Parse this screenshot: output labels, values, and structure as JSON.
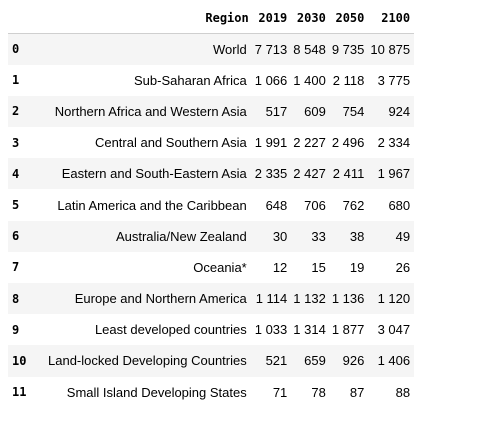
{
  "table": {
    "columns": [
      "",
      "Region",
      "2019",
      "2030",
      "2050",
      "2100"
    ],
    "rows": [
      {
        "index": "0",
        "region": "World",
        "v2019": "7 713",
        "v2030": "8 548",
        "v2050": "9 735",
        "v2100": "10 875"
      },
      {
        "index": "1",
        "region": "Sub-Saharan Africa",
        "v2019": "1 066",
        "v2030": "1 400",
        "v2050": "2 118",
        "v2100": "3 775"
      },
      {
        "index": "2",
        "region": "Northern Africa and Western Asia",
        "v2019": "517",
        "v2030": "609",
        "v2050": "754",
        "v2100": "924"
      },
      {
        "index": "3",
        "region": "Central and Southern Asia",
        "v2019": "1 991",
        "v2030": "2 227",
        "v2050": "2 496",
        "v2100": "2 334"
      },
      {
        "index": "4",
        "region": "Eastern and South-Eastern Asia",
        "v2019": "2 335",
        "v2030": "2 427",
        "v2050": "2 411",
        "v2100": "1 967"
      },
      {
        "index": "5",
        "region": "Latin America and the Caribbean",
        "v2019": "648",
        "v2030": "706",
        "v2050": "762",
        "v2100": "680"
      },
      {
        "index": "6",
        "region": "Australia/New Zealand",
        "v2019": "30",
        "v2030": "33",
        "v2050": "38",
        "v2100": "49"
      },
      {
        "index": "7",
        "region": "Oceania*",
        "v2019": "12",
        "v2030": "15",
        "v2050": "19",
        "v2100": "26"
      },
      {
        "index": "8",
        "region": "Europe and Northern America",
        "v2019": "1 114",
        "v2030": "1 132",
        "v2050": "1 136",
        "v2100": "1 120"
      },
      {
        "index": "9",
        "region": "Least developed countries",
        "v2019": "1 033",
        "v2030": "1 314",
        "v2050": "1 877",
        "v2100": "3 047"
      },
      {
        "index": "10",
        "region": "Land-locked Developing Countries",
        "v2019": "521",
        "v2030": "659",
        "v2050": "926",
        "v2100": "1 406"
      },
      {
        "index": "11",
        "region": "Small Island Developing States",
        "v2019": "71",
        "v2030": "78",
        "v2050": "87",
        "v2100": "88"
      }
    ]
  }
}
